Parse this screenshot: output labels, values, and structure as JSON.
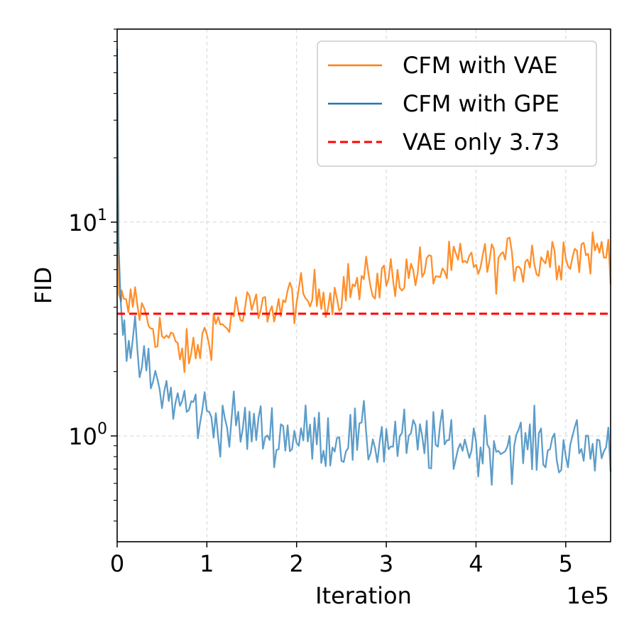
{
  "chart_data": {
    "type": "line",
    "xlabel": "Iteration",
    "ylabel": "FID",
    "x_offset_text": "1e5",
    "y_scale": "log",
    "xlim": [
      0,
      550000
    ],
    "ylim": [
      0.32,
      80
    ],
    "x_ticks": [
      {
        "value": 0,
        "label": "0"
      },
      {
        "value": 100000,
        "label": "1"
      },
      {
        "value": 200000,
        "label": "2"
      },
      {
        "value": 300000,
        "label": "3"
      },
      {
        "value": 400000,
        "label": "4"
      },
      {
        "value": 500000,
        "label": "5"
      }
    ],
    "y_ticks": [
      {
        "value": 1,
        "base": "10",
        "exp": "0"
      },
      {
        "value": 10,
        "base": "10",
        "exp": "1"
      }
    ],
    "grid": true,
    "legend_position": "upper right",
    "series": [
      {
        "name": "CFM with VAE",
        "color": "#ff7f0e",
        "style": "solid",
        "points": [
          [
            0,
            50
          ],
          [
            2000,
            4.6
          ],
          [
            5000,
            4.2
          ],
          [
            10000,
            3.8
          ],
          [
            20000,
            4.5
          ],
          [
            30000,
            3.6
          ],
          [
            40000,
            3.3
          ],
          [
            50000,
            3.0
          ],
          [
            60000,
            2.7
          ],
          [
            70000,
            2.5
          ],
          [
            80000,
            2.3
          ],
          [
            90000,
            2.6
          ],
          [
            100000,
            3.0
          ],
          [
            110000,
            3.4
          ],
          [
            120000,
            3.2
          ],
          [
            130000,
            3.8
          ],
          [
            140000,
            3.6
          ],
          [
            150000,
            4.0
          ],
          [
            160000,
            3.7
          ],
          [
            170000,
            4.2
          ],
          [
            180000,
            3.9
          ],
          [
            190000,
            4.3
          ],
          [
            200000,
            4.5
          ],
          [
            210000,
            4.1
          ],
          [
            220000,
            4.6
          ],
          [
            230000,
            4.8
          ],
          [
            240000,
            4.4
          ],
          [
            250000,
            5.0
          ],
          [
            260000,
            5.1
          ],
          [
            270000,
            4.9
          ],
          [
            280000,
            5.3
          ],
          [
            290000,
            5.2
          ],
          [
            300000,
            5.4
          ],
          [
            310000,
            5.8
          ],
          [
            320000,
            5.5
          ],
          [
            330000,
            6.1
          ],
          [
            340000,
            5.9
          ],
          [
            350000,
            6.0
          ],
          [
            360000,
            5.7
          ],
          [
            370000,
            6.2
          ],
          [
            380000,
            6.4
          ],
          [
            390000,
            6.0
          ],
          [
            400000,
            6.5
          ],
          [
            410000,
            6.6
          ],
          [
            420000,
            6.3
          ],
          [
            430000,
            6.8
          ],
          [
            440000,
            6.7
          ],
          [
            450000,
            6.5
          ],
          [
            460000,
            6.9
          ],
          [
            470000,
            6.6
          ],
          [
            480000,
            7.0
          ],
          [
            490000,
            7.1
          ],
          [
            500000,
            7.2
          ],
          [
            510000,
            7.0
          ],
          [
            520000,
            7.3
          ],
          [
            530000,
            7.2
          ],
          [
            540000,
            7.4
          ],
          [
            550000,
            7.2
          ]
        ],
        "noise": 0.13
      },
      {
        "name": "CFM with GPE",
        "color": "#1f77b4",
        "style": "solid",
        "points": [
          [
            0,
            65
          ],
          [
            1500,
            8.0
          ],
          [
            4000,
            4.2
          ],
          [
            8000,
            3.2
          ],
          [
            15000,
            2.6
          ],
          [
            25000,
            2.2
          ],
          [
            40000,
            1.8
          ],
          [
            60000,
            1.5
          ],
          [
            80000,
            1.35
          ],
          [
            100000,
            1.25
          ],
          [
            130000,
            1.12
          ],
          [
            160000,
            1.05
          ],
          [
            200000,
            1.0
          ],
          [
            250000,
            0.97
          ],
          [
            300000,
            0.95
          ],
          [
            350000,
            0.93
          ],
          [
            400000,
            0.91
          ],
          [
            450000,
            0.9
          ],
          [
            500000,
            0.88
          ],
          [
            550000,
            0.87
          ]
        ],
        "noise": 0.17
      },
      {
        "name": "VAE only 3.73",
        "color": "#ff0000",
        "style": "dashed",
        "points": [
          [
            0,
            3.73
          ],
          [
            550000,
            3.73
          ]
        ],
        "noise": 0
      }
    ]
  }
}
